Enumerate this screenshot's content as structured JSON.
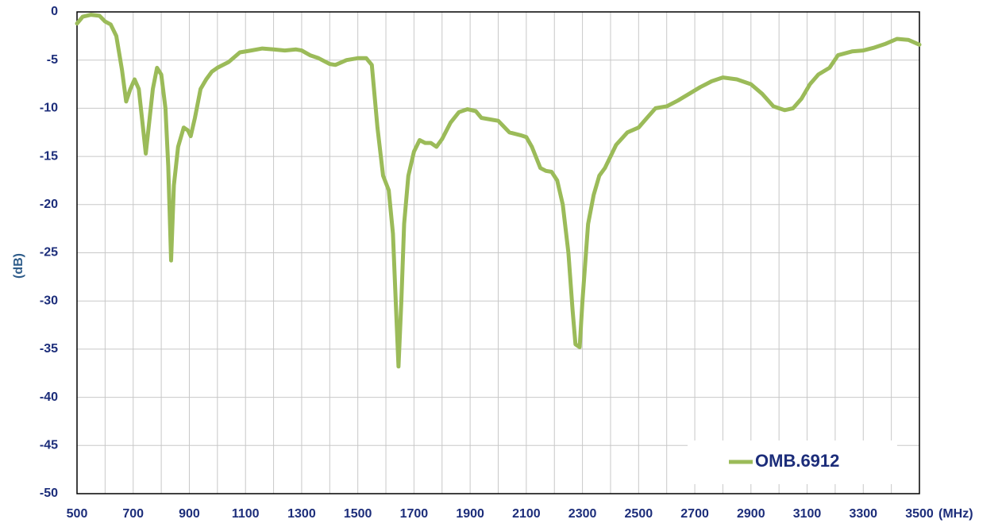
{
  "chart_data": {
    "type": "line",
    "x_label": "(MHz)",
    "y_label": "(dB)",
    "xlim": [
      500,
      3500
    ],
    "ylim": [
      -50,
      0
    ],
    "xticks": [
      500,
      700,
      900,
      1100,
      1300,
      1500,
      1700,
      1900,
      2100,
      2300,
      2500,
      2700,
      2900,
      3100,
      3300,
      3500
    ],
    "minor_xticks": [
      600,
      800,
      1000,
      1200,
      1400,
      1600,
      1800,
      2000,
      2200,
      2400,
      2600,
      2800,
      3000,
      3200,
      3400
    ],
    "yticks": [
      0,
      -5,
      -10,
      -15,
      -20,
      -25,
      -30,
      -35,
      -40,
      -45,
      -50
    ],
    "grid": true,
    "legend": "lower right",
    "series": [
      {
        "name": "OMB.6912",
        "color": "#9bbb59",
        "x": [
          500,
          520,
          550,
          580,
          600,
          620,
          640,
          660,
          675,
          690,
          705,
          720,
          735,
          745,
          755,
          770,
          785,
          800,
          815,
          825,
          835,
          845,
          860,
          880,
          895,
          905,
          920,
          940,
          960,
          980,
          1000,
          1040,
          1080,
          1120,
          1160,
          1200,
          1240,
          1280,
          1300,
          1330,
          1360,
          1400,
          1420,
          1460,
          1500,
          1530,
          1550,
          1570,
          1590,
          1610,
          1625,
          1635,
          1645,
          1655,
          1665,
          1680,
          1700,
          1720,
          1740,
          1760,
          1780,
          1800,
          1830,
          1860,
          1890,
          1920,
          1940,
          1980,
          2000,
          2040,
          2080,
          2100,
          2120,
          2150,
          2170,
          2190,
          2210,
          2230,
          2250,
          2265,
          2275,
          2290,
          2300,
          2320,
          2340,
          2360,
          2380,
          2420,
          2460,
          2500,
          2530,
          2560,
          2600,
          2640,
          2680,
          2720,
          2760,
          2800,
          2850,
          2900,
          2940,
          2980,
          3020,
          3050,
          3080,
          3110,
          3140,
          3180,
          3210,
          3260,
          3300,
          3340,
          3380,
          3420,
          3460,
          3500
        ],
        "values": [
          -1.2,
          -0.5,
          -0.3,
          -0.4,
          -1.0,
          -1.3,
          -2.5,
          -6,
          -9.3,
          -8,
          -7,
          -8,
          -12,
          -14.7,
          -12,
          -8,
          -5.8,
          -6.5,
          -10,
          -16,
          -25.8,
          -18,
          -14,
          -12,
          -12.3,
          -12.9,
          -11,
          -8,
          -7,
          -6.2,
          -5.8,
          -5.2,
          -4.2,
          -4.0,
          -3.8,
          -3.9,
          -4.0,
          -3.9,
          -4.0,
          -4.5,
          -4.8,
          -5.4,
          -5.5,
          -5.0,
          -4.8,
          -4.8,
          -5.5,
          -12,
          -17,
          -18.5,
          -23,
          -30,
          -36.8,
          -30,
          -22,
          -17,
          -14.5,
          -13.3,
          -13.6,
          -13.6,
          -14,
          -13.2,
          -11.5,
          -10.4,
          -10.1,
          -10.3,
          -11,
          -11.2,
          -11.3,
          -12.5,
          -12.8,
          -13,
          -14,
          -16.2,
          -16.5,
          -16.6,
          -17.5,
          -20,
          -25,
          -31,
          -34.5,
          -34.8,
          -30,
          -22,
          -19,
          -17,
          -16.2,
          -13.8,
          -12.5,
          -12,
          -11,
          -10,
          -9.8,
          -9.2,
          -8.5,
          -7.8,
          -7.2,
          -6.8,
          -7.0,
          -7.5,
          -8.5,
          -9.8,
          -10.2,
          -10.0,
          -9,
          -7.5,
          -6.5,
          -5.8,
          -4.5,
          -4.1,
          -4.0,
          -3.7,
          -3.3,
          -2.8,
          -2.9,
          -3.4
        ]
      }
    ]
  }
}
